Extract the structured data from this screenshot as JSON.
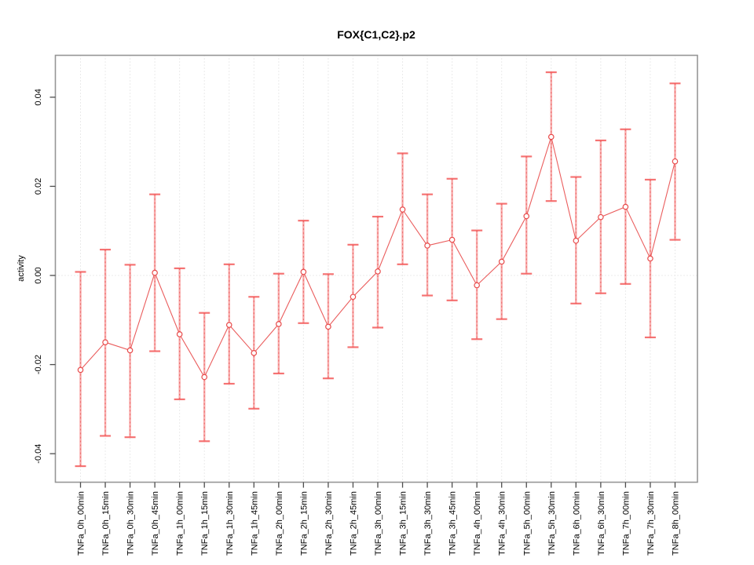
{
  "window": {
    "background": "#ffffff"
  },
  "chart_data": {
    "type": "line",
    "title": "FOX{C1,C2}.p2",
    "xlabel": "",
    "ylabel": "activity",
    "ylim": [
      -0.0464,
      0.0494
    ],
    "yticks": [
      -0.04,
      -0.02,
      0.0,
      0.02,
      0.04
    ],
    "ytick_labels": [
      "-0.04",
      "-0.02",
      "0.00",
      "0.02",
      "0.04"
    ],
    "grid": "dotted vertical line at each category, dotted horizontal line at y=0",
    "legend": "none",
    "marker": "open-circle",
    "categories": [
      "TNFa_0h_00min",
      "TNFa_0h_15min",
      "TNFa_0h_30min",
      "TNFa_0h_45min",
      "TNFa_1h_00min",
      "TNFa_1h_15min",
      "TNFa_1h_30min",
      "TNFa_1h_45min",
      "TNFa_2h_00min",
      "TNFa_2h_15min",
      "TNFa_2h_30min",
      "TNFa_2h_45min",
      "TNFa_3h_00min",
      "TNFa_3h_15min",
      "TNFa_3h_30min",
      "TNFa_3h_45min",
      "TNFa_4h_00min",
      "TNFa_4h_30min",
      "TNFa_5h_00min",
      "TNFa_5h_30min",
      "TNFa_6h_00min",
      "TNFa_6h_30min",
      "TNFa_7h_00min",
      "TNFa_7h_30min",
      "TNFa_8h_00min"
    ],
    "series": [
      {
        "name": "activity",
        "values": [
          -0.0212,
          -0.015,
          -0.0168,
          0.0006,
          -0.0132,
          -0.0228,
          -0.0111,
          -0.0174,
          -0.0109,
          0.0008,
          -0.0115,
          -0.0048,
          0.0009,
          0.0148,
          0.0067,
          0.008,
          -0.0022,
          0.0031,
          0.0133,
          0.0311,
          0.0078,
          0.0131,
          0.0154,
          0.0038,
          0.0256
        ],
        "lower": [
          -0.0428,
          -0.036,
          -0.0363,
          -0.017,
          -0.0278,
          -0.0372,
          -0.0243,
          -0.0299,
          -0.022,
          -0.0107,
          -0.0231,
          -0.0161,
          -0.0117,
          0.0025,
          -0.0045,
          -0.0056,
          -0.0143,
          -0.0098,
          0.0004,
          0.0167,
          -0.0063,
          -0.004,
          -0.0019,
          -0.0139,
          0.008
        ],
        "upper": [
          0.0008,
          0.0058,
          0.0024,
          0.0182,
          0.0016,
          -0.0084,
          0.0025,
          -0.0048,
          0.0004,
          0.0123,
          0.0003,
          0.0069,
          0.0132,
          0.0274,
          0.0182,
          0.0217,
          0.0101,
          0.0161,
          0.0267,
          0.0456,
          0.0221,
          0.0303,
          0.0328,
          0.0215,
          0.0431
        ]
      }
    ],
    "colors": {
      "line": "#e84b4b",
      "marker": "#e84b4b",
      "errorbar_fill": "rgba(246,108,108,0.55)",
      "errorbar_dash": "rgba(230,60,60,0.55)",
      "errorbar_cap": "rgba(243,90,90,0.85)",
      "grid": "#d6d6d6",
      "zero_line": "#d6d6d6",
      "frame": "#969696",
      "tick": "#4d4d4d",
      "text": "#000000"
    }
  }
}
